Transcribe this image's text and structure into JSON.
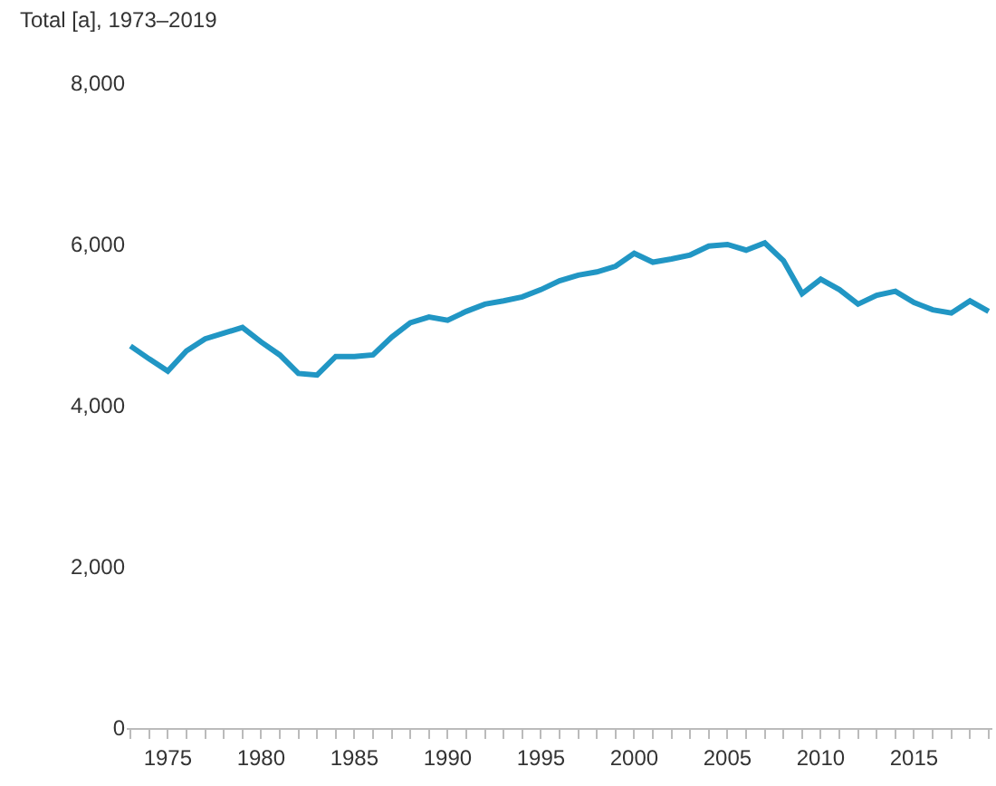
{
  "chart_data": {
    "type": "line",
    "title": "Total [a], 1973–2019",
    "x": [
      1973,
      1974,
      1975,
      1976,
      1977,
      1978,
      1979,
      1980,
      1981,
      1982,
      1983,
      1984,
      1985,
      1986,
      1987,
      1988,
      1989,
      1990,
      1991,
      1992,
      1993,
      1994,
      1995,
      1996,
      1997,
      1998,
      1999,
      2000,
      2001,
      2002,
      2003,
      2004,
      2005,
      2006,
      2007,
      2008,
      2009,
      2010,
      2011,
      2012,
      2013,
      2014,
      2015,
      2016,
      2017,
      2018,
      2019
    ],
    "series": [
      {
        "color": "#2196c4",
        "values": [
          4740,
          4580,
          4430,
          4680,
          4830,
          4900,
          4970,
          4790,
          4630,
          4400,
          4380,
          4610,
          4610,
          4630,
          4850,
          5030,
          5100,
          5060,
          5170,
          5260,
          5300,
          5350,
          5440,
          5550,
          5620,
          5660,
          5730,
          5890,
          5780,
          5820,
          5870,
          5980,
          6000,
          5930,
          6020,
          5800,
          5390,
          5570,
          5440,
          5260,
          5370,
          5420,
          5280,
          5190,
          5150,
          5300,
          5170
        ]
      }
    ],
    "xlim": [
      1972.8,
      2019.2
    ],
    "xticks": [
      {
        "value": 1973,
        "label": null
      },
      {
        "value": 1974,
        "label": null
      },
      1975,
      {
        "value": 1976,
        "label": null
      },
      {
        "value": 1977,
        "label": null
      },
      {
        "value": 1978,
        "label": null
      },
      {
        "value": 1979,
        "label": null
      },
      1980,
      {
        "value": 1981,
        "label": null
      },
      {
        "value": 1982,
        "label": null
      },
      {
        "value": 1983,
        "label": null
      },
      {
        "value": 1984,
        "label": null
      },
      1985,
      {
        "value": 1986,
        "label": null
      },
      {
        "value": 1987,
        "label": null
      },
      {
        "value": 1988,
        "label": null
      },
      {
        "value": 1989,
        "label": null
      },
      1990,
      {
        "value": 1991,
        "label": null
      },
      {
        "value": 1992,
        "label": null
      },
      {
        "value": 1993,
        "label": null
      },
      {
        "value": 1994,
        "label": null
      },
      1995,
      {
        "value": 1996,
        "label": null
      },
      {
        "value": 1997,
        "label": null
      },
      {
        "value": 1998,
        "label": null
      },
      {
        "value": 1999,
        "label": null
      },
      2000,
      {
        "value": 2001,
        "label": null
      },
      {
        "value": 2002,
        "label": null
      },
      {
        "value": 2003,
        "label": null
      },
      {
        "value": 2004,
        "label": null
      },
      2005,
      {
        "value": 2006,
        "label": null
      },
      {
        "value": 2007,
        "label": null
      },
      {
        "value": 2008,
        "label": null
      },
      {
        "value": 2009,
        "label": null
      },
      2010,
      {
        "value": 2011,
        "label": null
      },
      {
        "value": 2012,
        "label": null
      },
      {
        "value": 2013,
        "label": null
      },
      {
        "value": 2014,
        "label": null
      },
      2015,
      {
        "value": 2016,
        "label": null
      },
      {
        "value": 2017,
        "label": null
      },
      {
        "value": 2018,
        "label": null
      },
      {
        "value": 2019,
        "label": null
      }
    ],
    "ylim": [
      0,
      8000
    ],
    "yticks": [
      {
        "value": 0,
        "label": "0"
      },
      {
        "value": 2000,
        "label": "2,000"
      },
      {
        "value": 4000,
        "label": "4,000"
      },
      {
        "value": 6000,
        "label": "6,000"
      },
      {
        "value": 8000,
        "label": "8,000"
      }
    ],
    "marker": "none",
    "line_style": "solid"
  }
}
